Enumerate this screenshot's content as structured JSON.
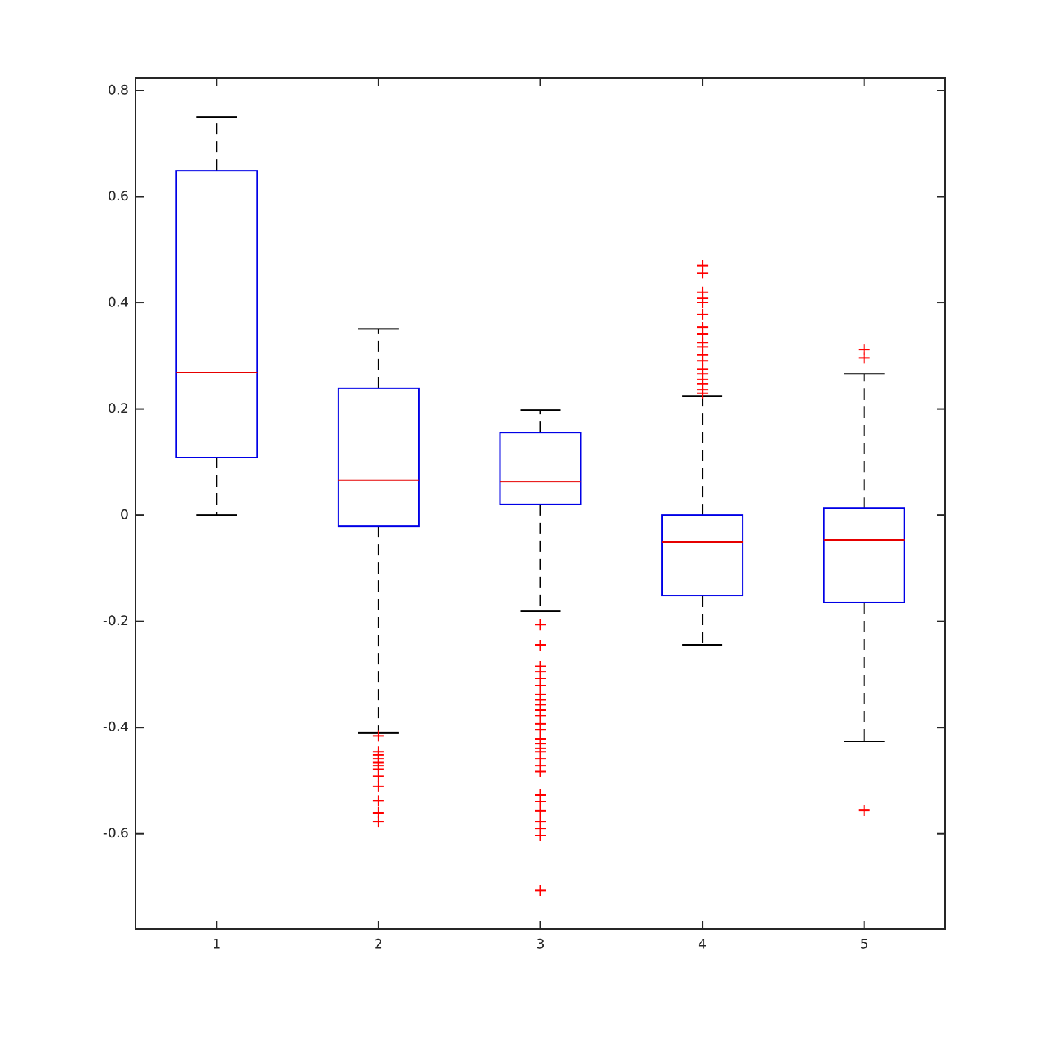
{
  "chart_data": {
    "type": "box",
    "categories": [
      "1",
      "2",
      "3",
      "4",
      "5"
    ],
    "boxes": [
      {
        "min": 0,
        "q1": 0.109,
        "median": 0.269,
        "q3": 0.649,
        "max": 0.75,
        "outliers": []
      },
      {
        "min": -0.41,
        "q1": -0.021,
        "median": 0.066,
        "q3": 0.239,
        "max": 0.351,
        "outliers": [
          -0.416,
          -0.446,
          -0.452,
          -0.459,
          -0.466,
          -0.472,
          -0.479,
          -0.492,
          -0.511,
          -0.538,
          -0.561,
          -0.577
        ]
      },
      {
        "min": -0.181,
        "q1": 0.02,
        "median": 0.063,
        "q3": 0.156,
        "max": 0.198,
        "outliers": [
          -0.206,
          -0.245,
          -0.285,
          -0.295,
          -0.308,
          -0.321,
          -0.338,
          -0.348,
          -0.357,
          -0.367,
          -0.378,
          -0.393,
          -0.404,
          -0.422,
          -0.43,
          -0.439,
          -0.446,
          -0.459,
          -0.472,
          -0.483,
          -0.527,
          -0.54,
          -0.557,
          -0.577,
          -0.59,
          -0.603,
          -0.707
        ]
      },
      {
        "min": -0.245,
        "q1": -0.152,
        "median": -0.051,
        "q3": 0,
        "max": 0.224,
        "outliers": [
          0.47,
          0.456,
          0.42,
          0.409,
          0.4,
          0.378,
          0.354,
          0.341,
          0.325,
          0.317,
          0.302,
          0.291,
          0.275,
          0.266,
          0.256,
          0.247,
          0.236,
          0.23
        ]
      },
      {
        "min": -0.426,
        "q1": -0.165,
        "median": -0.047,
        "q3": 0.013,
        "max": 0.266,
        "outliers": [
          0.312,
          0.296,
          -0.556
        ]
      }
    ],
    "box_color": "#0000e6",
    "median_color": "#e60000",
    "whisker_color": "#000000",
    "outlier_color": "#ff0000",
    "ylim": [
      -0.78,
      0.8236
    ],
    "yticks": [
      -0.6,
      -0.4,
      -0.2,
      0,
      0.2,
      0.4,
      0.6,
      0.8
    ]
  }
}
